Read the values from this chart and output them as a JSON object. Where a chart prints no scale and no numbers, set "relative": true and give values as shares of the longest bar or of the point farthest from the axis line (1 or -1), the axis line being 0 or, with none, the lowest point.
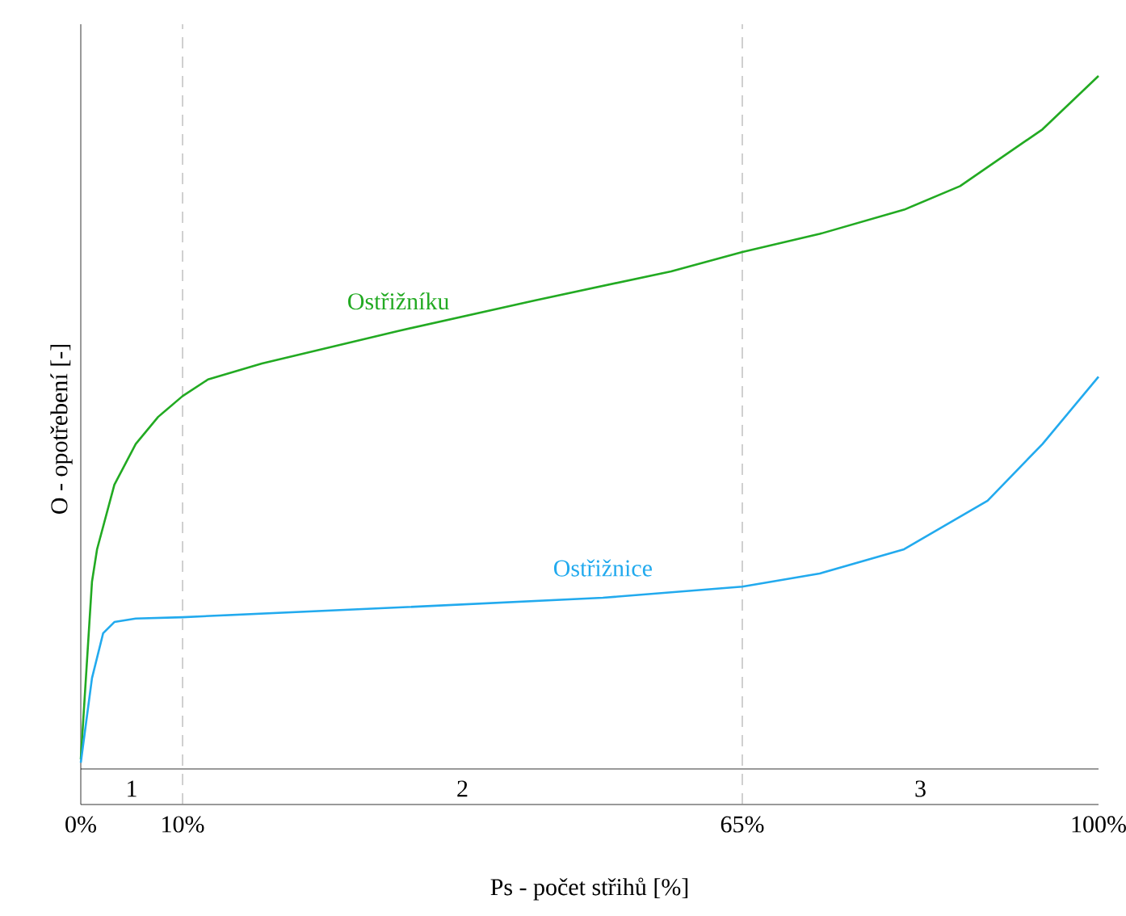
{
  "chart_data": {
    "type": "line",
    "relative": true,
    "xlabel": "Ps - počet střihů [%]",
    "ylabel": "O - opotřebení [-]",
    "xlim": [
      0,
      100
    ],
    "xticks": [
      {
        "value": 0,
        "label": "0%"
      },
      {
        "value": 10,
        "label": "10%"
      },
      {
        "value": 65,
        "label": "65%"
      },
      {
        "value": 100,
        "label": "100%"
      }
    ],
    "series": [
      {
        "name": "Ostřižníku",
        "color": "#22aa22",
        "x": [
          0,
          1.1,
          1.6,
          3.3,
          5.4,
          7.6,
          10,
          12.5,
          17.8,
          31.2,
          44.6,
          58.0,
          65,
          72.6,
          80.9,
          86.4,
          94.5,
          100
        ],
        "values": [
          0.014,
          0.27,
          0.317,
          0.41,
          0.469,
          0.508,
          0.538,
          0.562,
          0.585,
          0.632,
          0.676,
          0.718,
          0.746,
          0.772,
          0.807,
          0.841,
          0.923,
          1
        ]
      },
      {
        "name": "Ostřižnice",
        "color": "#22aaee",
        "x": [
          0,
          1.1,
          2.2,
          3.3,
          5.4,
          10,
          31.2,
          51.3,
          65,
          72.6,
          80.9,
          89.1,
          94.5,
          100
        ],
        "values": [
          0.009,
          0.131,
          0.196,
          0.212,
          0.217,
          0.219,
          0.233,
          0.247,
          0.263,
          0.282,
          0.317,
          0.387,
          0.469,
          0.566
        ]
      }
    ],
    "ref_lines": [
      {
        "axis": "x",
        "value": 10,
        "color": "#888888",
        "line_style": "dashed"
      },
      {
        "axis": "x",
        "value": 65,
        "color": "#888888",
        "line_style": "dashed"
      }
    ],
    "annotations": [
      "1",
      "2",
      "3"
    ],
    "grid": false,
    "marker": "none",
    "line_style": "solid"
  }
}
